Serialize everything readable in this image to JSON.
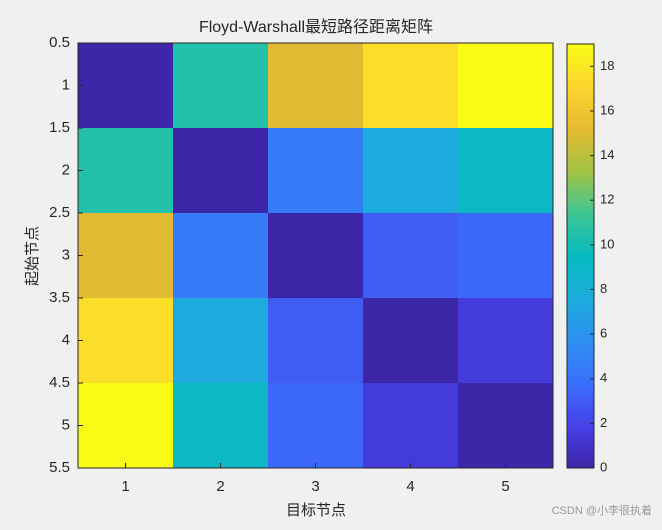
{
  "chart_data": {
    "type": "heatmap",
    "title": "Floyd-Warshall最短路径距离矩阵",
    "x_label": "目标节点",
    "y_label": "起始节点",
    "xlim": [
      0.5,
      5.5
    ],
    "xticks": [
      1,
      2,
      3,
      4,
      5
    ],
    "ylim": [
      0.5,
      5.5
    ],
    "yticks": [
      0.5,
      1,
      1.5,
      2,
      2.5,
      3,
      3.5,
      4,
      4.5,
      5,
      5.5
    ],
    "y_reversed": true,
    "z": [
      [
        0,
        10.5,
        15,
        17.5,
        19
      ],
      [
        10.5,
        0,
        4.5,
        7.5,
        9
      ],
      [
        15,
        4.5,
        0,
        3,
        3.5
      ],
      [
        17.5,
        7.5,
        3,
        0,
        1.5
      ],
      [
        19,
        9,
        3.5,
        1.5,
        0
      ]
    ],
    "colormap": "parula",
    "clim": [
      0,
      19
    ],
    "cticks": [
      0,
      2,
      4,
      6,
      8,
      10,
      12,
      14,
      16,
      18
    ],
    "watermark": "CSDN @小李很执着"
  }
}
